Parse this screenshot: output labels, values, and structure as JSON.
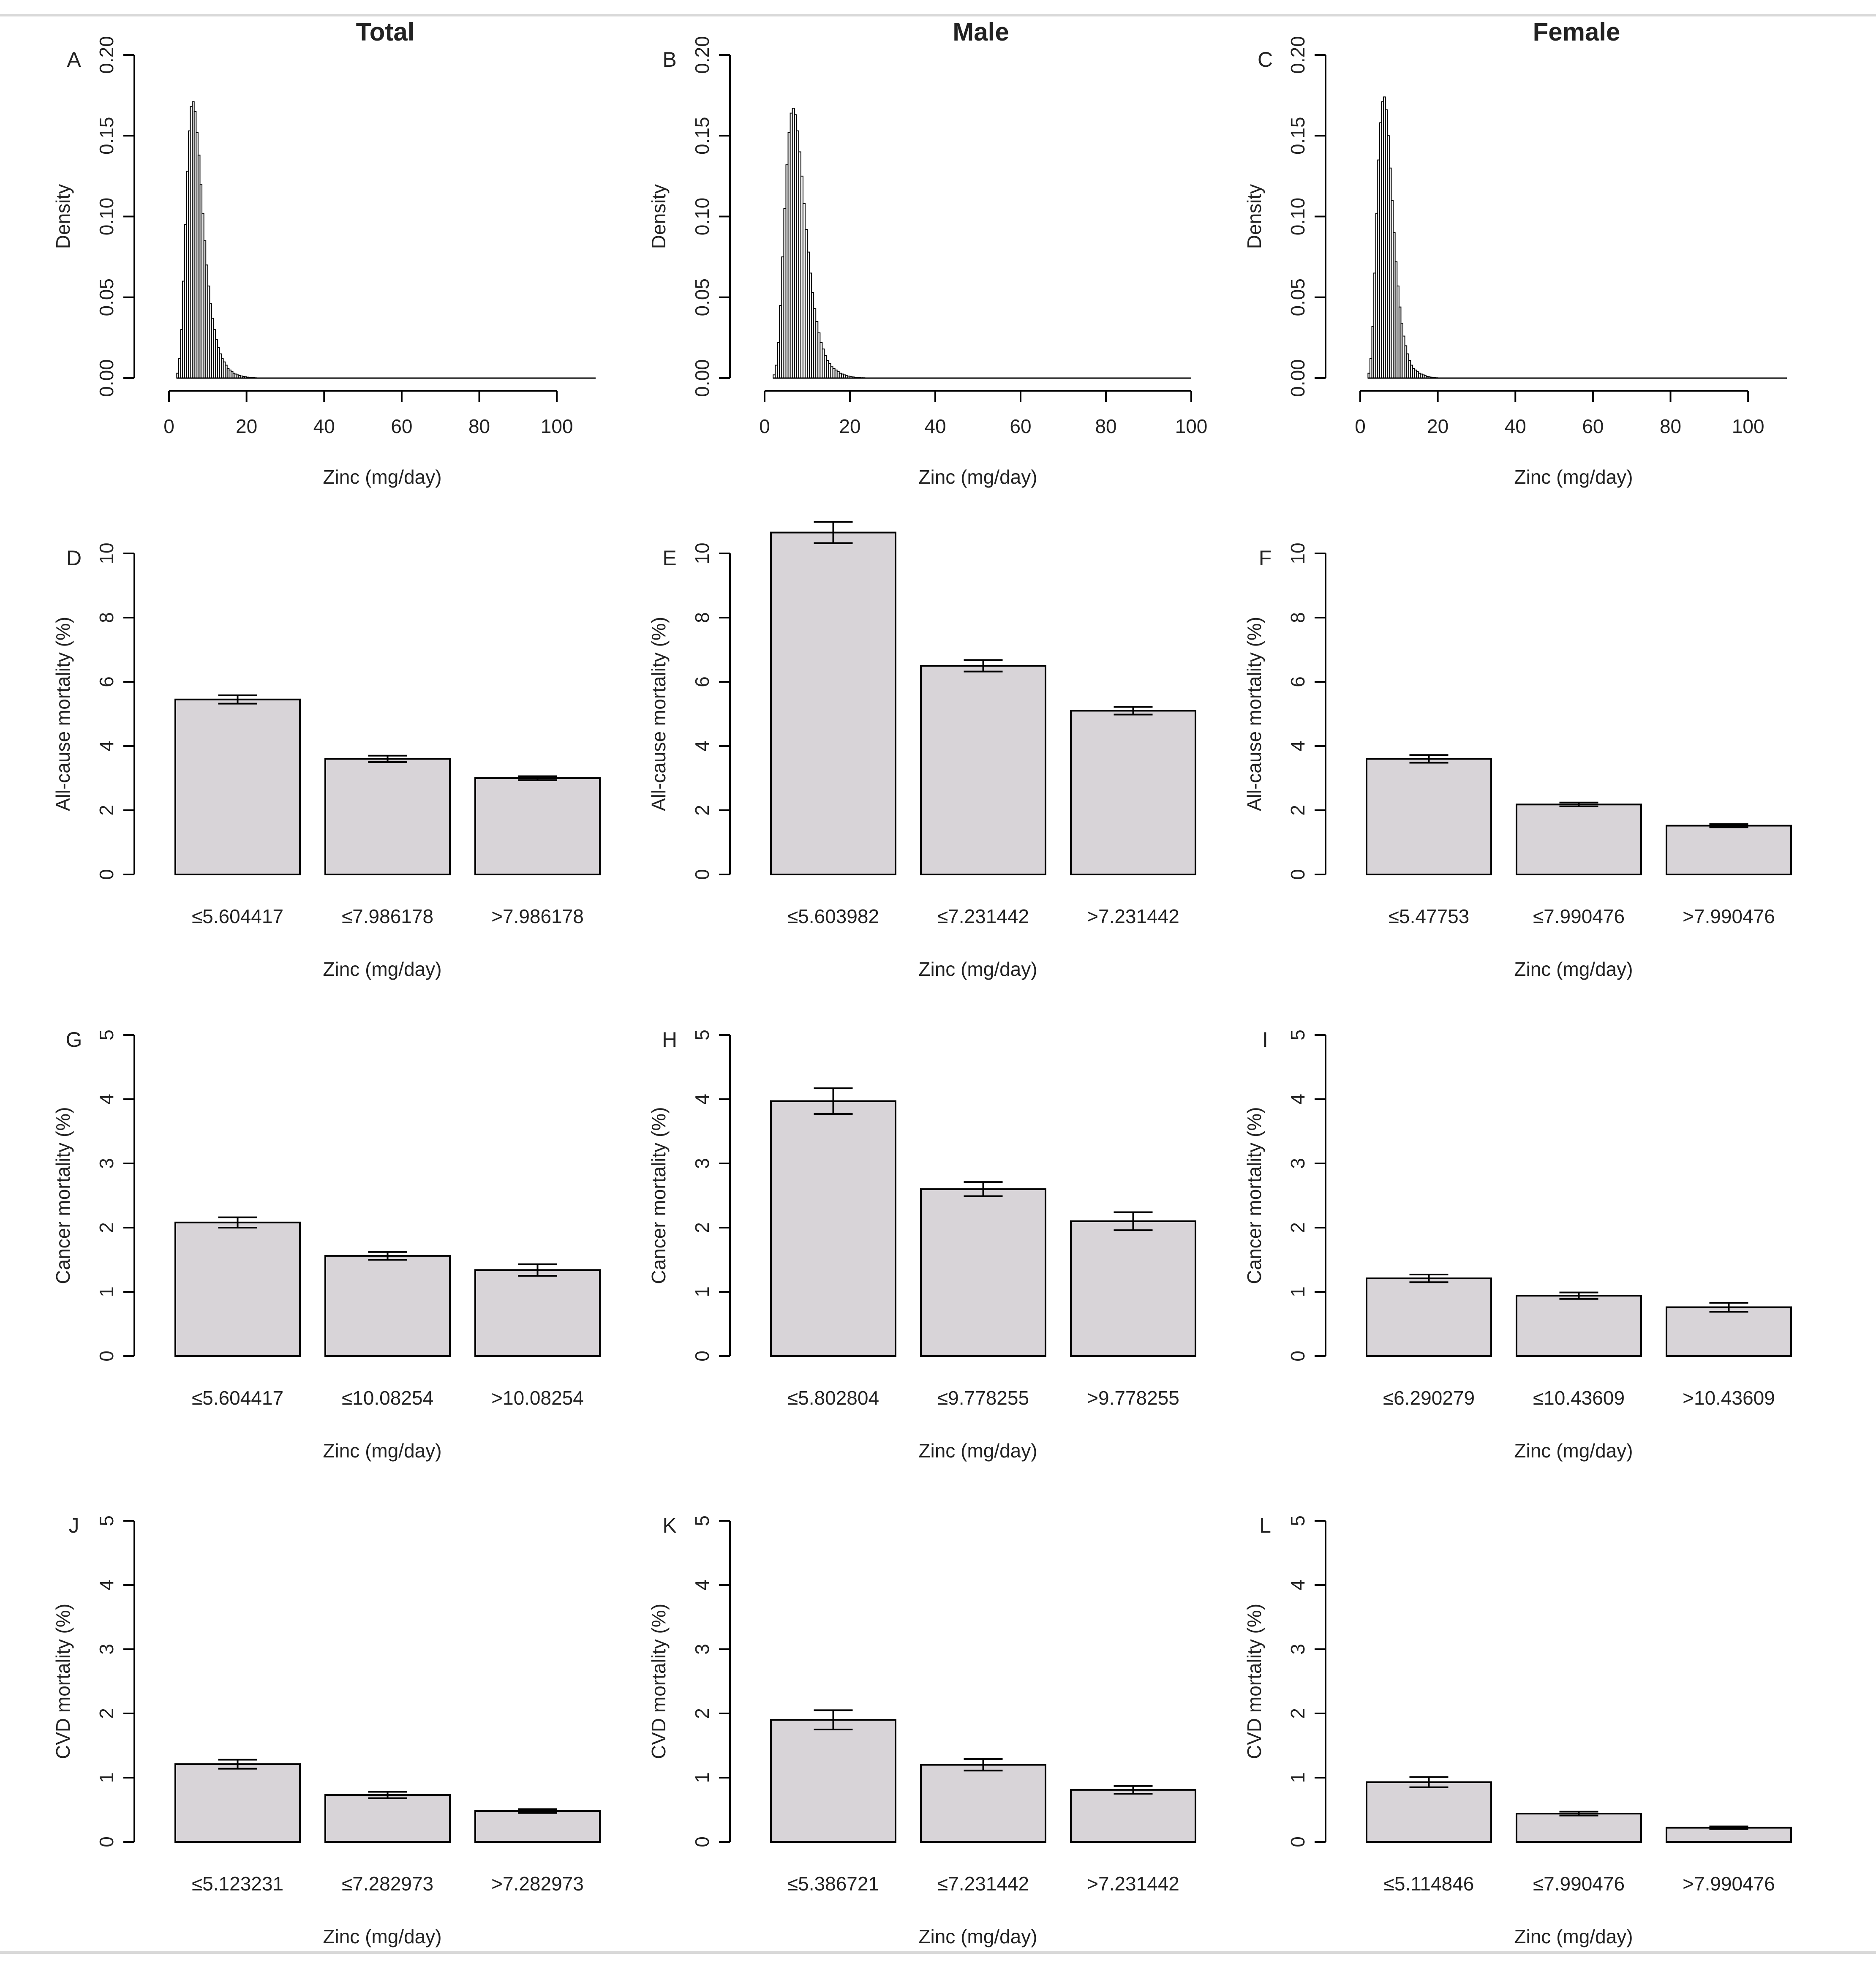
{
  "column_titles": [
    "Total",
    "Male",
    "Female"
  ],
  "chart_data": [
    {
      "panel": "A",
      "column": 0,
      "row": 0,
      "type": "histogram",
      "title": "Total",
      "xlabel": "Zinc (mg/day)",
      "ylabel": "Density",
      "xlim": [
        0,
        110
      ],
      "ylim": [
        0,
        0.2
      ],
      "xticks": [
        "0",
        "20",
        "40",
        "60",
        "80",
        "100"
      ],
      "yticks": [
        "0.00",
        "0.05",
        "0.10",
        "0.15",
        "0.20"
      ],
      "bin_width": 0.5,
      "bin_start": 2,
      "density": [
        0.003,
        0.012,
        0.03,
        0.06,
        0.095,
        0.128,
        0.153,
        0.168,
        0.171,
        0.165,
        0.152,
        0.138,
        0.12,
        0.102,
        0.085,
        0.07,
        0.057,
        0.046,
        0.037,
        0.03,
        0.024,
        0.019,
        0.015,
        0.012,
        0.01,
        0.008,
        0.006,
        0.005,
        0.004,
        0.003,
        0.0025,
        0.002,
        0.0016,
        0.0013,
        0.001,
        0.0008,
        0.0006,
        0.0005,
        0.0004,
        0.0003,
        0.0002
      ]
    },
    {
      "panel": "B",
      "column": 1,
      "row": 0,
      "type": "histogram",
      "title": "Male",
      "xlabel": "Zinc (mg/day)",
      "ylabel": "Density",
      "xlim": [
        0,
        100
      ],
      "ylim": [
        0,
        0.2
      ],
      "xticks": [
        "0",
        "20",
        "40",
        "60",
        "80",
        "100"
      ],
      "yticks": [
        "0.00",
        "0.05",
        "0.10",
        "0.15",
        "0.20"
      ],
      "bin_width": 0.5,
      "bin_start": 2,
      "density": [
        0.002,
        0.008,
        0.022,
        0.045,
        0.075,
        0.105,
        0.132,
        0.152,
        0.164,
        0.167,
        0.163,
        0.153,
        0.14,
        0.125,
        0.108,
        0.092,
        0.078,
        0.065,
        0.053,
        0.043,
        0.035,
        0.028,
        0.022,
        0.018,
        0.014,
        0.011,
        0.009,
        0.007,
        0.006,
        0.005,
        0.004,
        0.003,
        0.0025,
        0.002,
        0.0015,
        0.0012,
        0.0009,
        0.0007,
        0.0005,
        0.0004,
        0.0003,
        0.0002,
        0.0002
      ]
    },
    {
      "panel": "C",
      "column": 2,
      "row": 0,
      "type": "histogram",
      "title": "Female",
      "xlabel": "Zinc (mg/day)",
      "ylabel": "Density",
      "xlim": [
        0,
        110
      ],
      "ylim": [
        0,
        0.2
      ],
      "xticks": [
        "0",
        "20",
        "40",
        "60",
        "80",
        "100"
      ],
      "yticks": [
        "0.00",
        "0.05",
        "0.10",
        "0.15",
        "0.20"
      ],
      "bin_width": 0.5,
      "bin_start": 2,
      "density": [
        0.003,
        0.012,
        0.032,
        0.065,
        0.102,
        0.135,
        0.158,
        0.171,
        0.174,
        0.166,
        0.15,
        0.13,
        0.11,
        0.09,
        0.072,
        0.057,
        0.044,
        0.034,
        0.026,
        0.02,
        0.015,
        0.011,
        0.008,
        0.006,
        0.005,
        0.004,
        0.003,
        0.0025,
        0.002,
        0.0015,
        0.001,
        0.0008,
        0.0006,
        0.0004,
        0.0003,
        0.0002
      ]
    },
    {
      "panel": "D",
      "column": 0,
      "row": 1,
      "type": "bar",
      "xlabel": "Zinc (mg/day)",
      "ylabel": "All-cause mortality (%)",
      "ylim": [
        0,
        10
      ],
      "yticks": [
        "0",
        "2",
        "4",
        "6",
        "8",
        "10"
      ],
      "categories": [
        "≤5.604417",
        "≤7.986178",
        ">7.986178"
      ],
      "values": [
        5.45,
        3.6,
        3.0
      ],
      "error": [
        0.13,
        0.1,
        0.06
      ]
    },
    {
      "panel": "E",
      "column": 1,
      "row": 1,
      "type": "bar",
      "xlabel": "Zinc (mg/day)",
      "ylabel": "All-cause mortality (%)",
      "ylim": [
        0,
        10
      ],
      "yticks": [
        "0",
        "2",
        "4",
        "6",
        "8",
        "10"
      ],
      "categories": [
        "≤5.603982",
        "≤7.231442",
        ">7.231442"
      ],
      "values": [
        10.65,
        6.5,
        5.1
      ],
      "error": [
        0.33,
        0.18,
        0.12
      ]
    },
    {
      "panel": "F",
      "column": 2,
      "row": 1,
      "type": "bar",
      "xlabel": "Zinc (mg/day)",
      "ylabel": "All-cause mortality (%)",
      "ylim": [
        0,
        10
      ],
      "yticks": [
        "0",
        "2",
        "4",
        "6",
        "8",
        "10"
      ],
      "categories": [
        "≤5.47753",
        "≤7.990476",
        ">7.990476"
      ],
      "values": [
        3.6,
        2.18,
        1.52
      ],
      "error": [
        0.12,
        0.06,
        0.05
      ]
    },
    {
      "panel": "G",
      "column": 0,
      "row": 2,
      "type": "bar",
      "xlabel": "Zinc (mg/day)",
      "ylabel": "Cancer mortality (%)",
      "ylim": [
        0,
        5
      ],
      "yticks": [
        "0",
        "1",
        "2",
        "3",
        "4",
        "5"
      ],
      "categories": [
        "≤5.604417",
        "≤10.08254",
        ">10.08254"
      ],
      "values": [
        2.08,
        1.56,
        1.34
      ],
      "error": [
        0.08,
        0.06,
        0.09
      ]
    },
    {
      "panel": "H",
      "column": 1,
      "row": 2,
      "type": "bar",
      "xlabel": "Zinc (mg/day)",
      "ylabel": "Cancer mortality (%)",
      "ylim": [
        0,
        5
      ],
      "yticks": [
        "0",
        "1",
        "2",
        "3",
        "4",
        "5"
      ],
      "categories": [
        "≤5.802804",
        "≤9.778255",
        ">9.778255"
      ],
      "values": [
        3.97,
        2.6,
        2.1
      ],
      "error": [
        0.2,
        0.11,
        0.14
      ]
    },
    {
      "panel": "I",
      "column": 2,
      "row": 2,
      "type": "bar",
      "xlabel": "Zinc (mg/day)",
      "ylabel": "Cancer mortality (%)",
      "ylim": [
        0,
        5
      ],
      "yticks": [
        "0",
        "1",
        "2",
        "3",
        "4",
        "5"
      ],
      "categories": [
        "≤6.290279",
        "≤10.43609",
        ">10.43609"
      ],
      "values": [
        1.21,
        0.94,
        0.76
      ],
      "error": [
        0.06,
        0.05,
        0.07
      ]
    },
    {
      "panel": "J",
      "column": 0,
      "row": 3,
      "type": "bar",
      "xlabel": "Zinc (mg/day)",
      "ylabel": "CVD mortality (%)",
      "ylim": [
        0,
        5
      ],
      "yticks": [
        "0",
        "1",
        "2",
        "3",
        "4",
        "5"
      ],
      "categories": [
        "≤5.123231",
        "≤7.282973",
        ">7.282973"
      ],
      "values": [
        1.21,
        0.73,
        0.48
      ],
      "error": [
        0.07,
        0.05,
        0.03
      ]
    },
    {
      "panel": "K",
      "column": 1,
      "row": 3,
      "type": "bar",
      "xlabel": "Zinc (mg/day)",
      "ylabel": "CVD mortality (%)",
      "ylim": [
        0,
        5
      ],
      "yticks": [
        "0",
        "1",
        "2",
        "3",
        "4",
        "5"
      ],
      "categories": [
        "≤5.386721",
        "≤7.231442",
        ">7.231442"
      ],
      "values": [
        1.9,
        1.2,
        0.81
      ],
      "error": [
        0.15,
        0.09,
        0.06
      ]
    },
    {
      "panel": "L",
      "column": 2,
      "row": 3,
      "type": "bar",
      "xlabel": "Zinc (mg/day)",
      "ylabel": "CVD mortality (%)",
      "ylim": [
        0,
        5
      ],
      "yticks": [
        "0",
        "1",
        "2",
        "3",
        "4",
        "5"
      ],
      "categories": [
        "≤5.114846",
        "≤7.990476",
        ">7.990476"
      ],
      "values": [
        0.93,
        0.44,
        0.22
      ],
      "error": [
        0.08,
        0.03,
        0.02
      ]
    }
  ],
  "colors": {
    "bar_fill": "#d8d4d8",
    "line": "#000000",
    "histogram_fill": "#ffffff",
    "text": "#222222"
  }
}
